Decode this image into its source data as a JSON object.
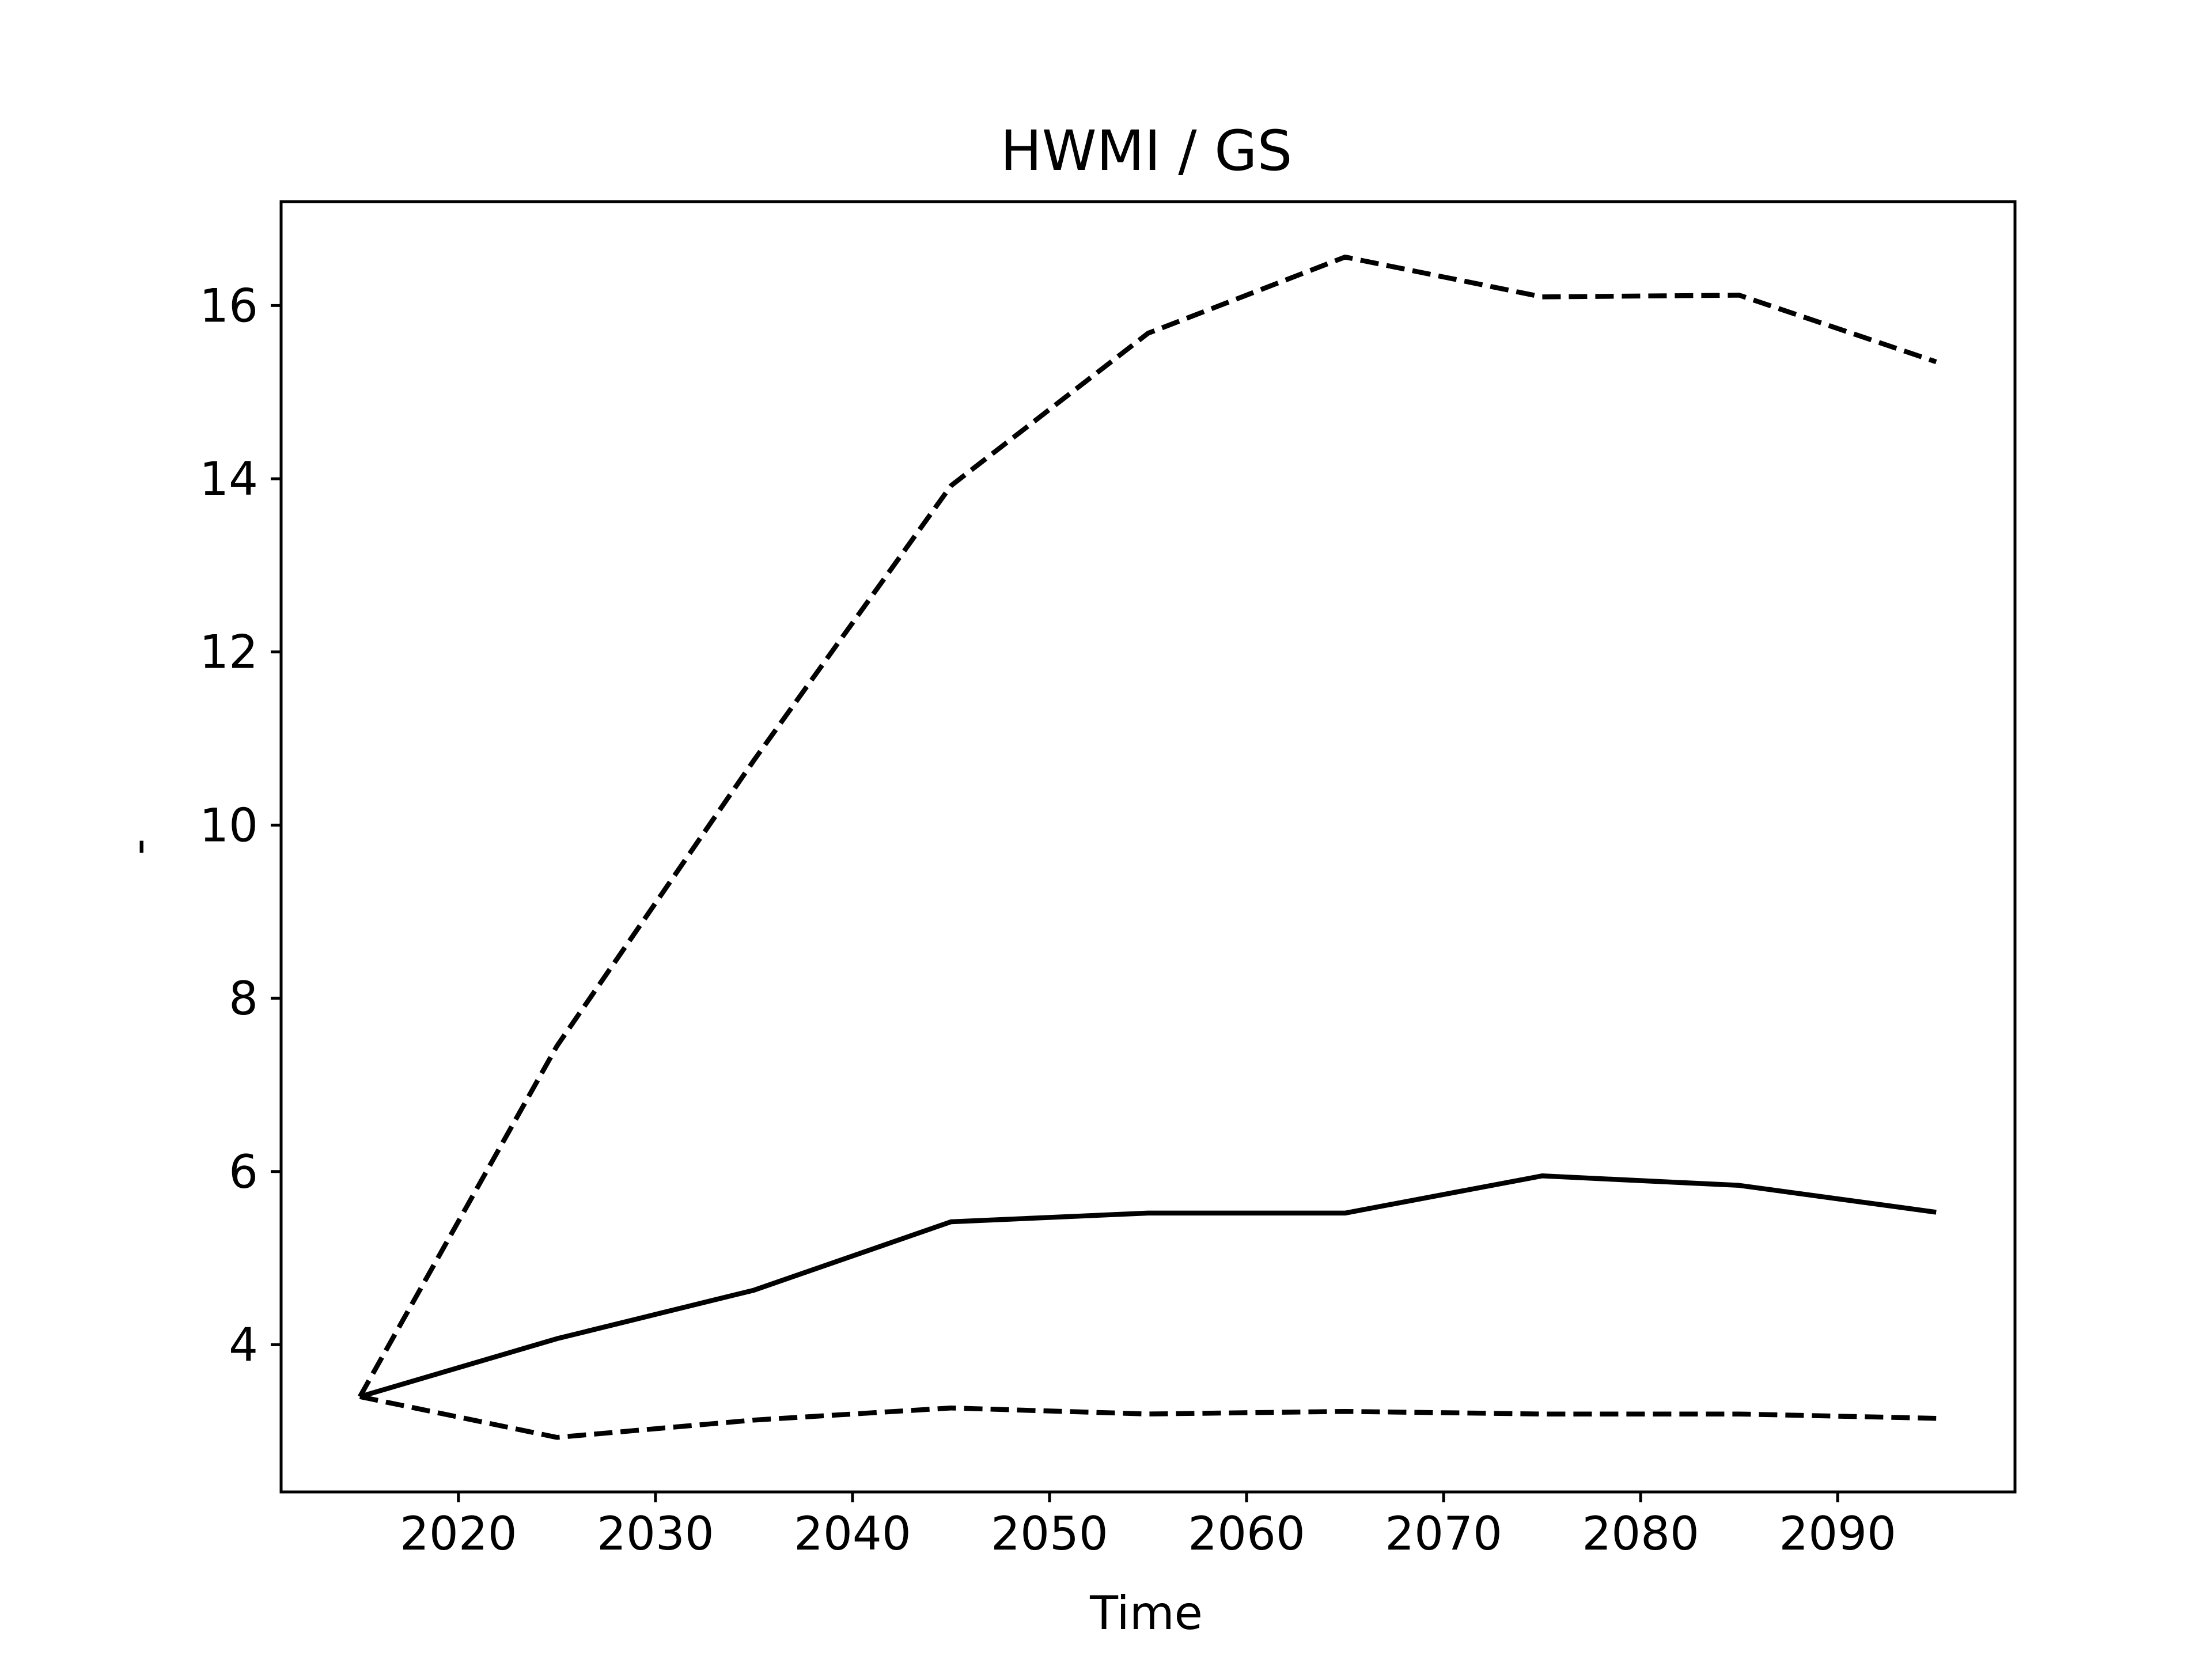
{
  "chart_data": {
    "type": "line",
    "title": "HWMI / GS",
    "xlabel": "Time",
    "ylabel": "-",
    "xlim": [
      2011,
      2099
    ],
    "ylim": [
      2.3,
      17.2
    ],
    "xticks": [
      2020,
      2030,
      2040,
      2050,
      2060,
      2070,
      2080,
      2090
    ],
    "yticks": [
      4,
      6,
      8,
      10,
      12,
      14,
      16
    ],
    "x": [
      2015,
      2025,
      2035,
      2045,
      2055,
      2065,
      2075,
      2085,
      2095
    ],
    "series": [
      {
        "style": "solid",
        "color": "#000000",
        "values": [
          3.4,
          4.07,
          4.63,
          5.42,
          5.52,
          5.52,
          5.95,
          5.84,
          5.53
        ]
      },
      {
        "style": "dashed",
        "color": "#000000",
        "values": [
          3.4,
          7.45,
          10.75,
          13.92,
          15.68,
          16.56,
          16.1,
          16.12,
          15.35
        ]
      },
      {
        "style": "dashed",
        "color": "#000000",
        "values": [
          3.4,
          2.93,
          3.13,
          3.27,
          3.2,
          3.23,
          3.2,
          3.2,
          3.15
        ]
      }
    ]
  }
}
